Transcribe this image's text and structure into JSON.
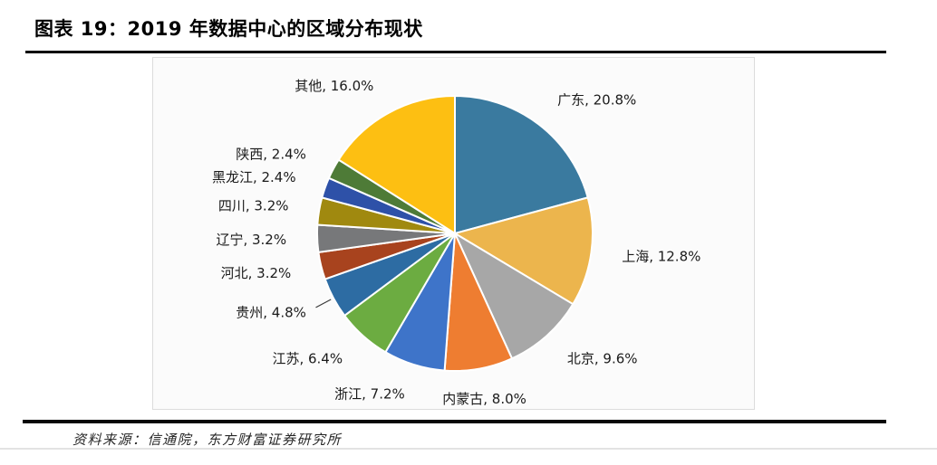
{
  "header": {
    "title": "图表 19：2019 年数据中心的区域分布现状"
  },
  "footer": {
    "source": "资料来源：信通院，东方财富证券研究所"
  },
  "colors": {
    "divider_rule": "#070707",
    "chart_box_border": "#DCDCDC",
    "chart_box_background": "#FBFBFB",
    "label_text": "#1B1B1B"
  },
  "chart_data": {
    "type": "pie",
    "title": "2019 年数据中心的区域分布现状",
    "unit": "%",
    "start_angle_deg": 0,
    "direction": "clockwise",
    "legend_position": "none",
    "grid": false,
    "slice_separator_color": "#FFFFFF",
    "slices": [
      {
        "name": "广东",
        "value": 20.8,
        "label": "广东, 20.8%",
        "color": "#3A7A9F"
      },
      {
        "name": "上海",
        "value": 12.8,
        "label": "上海, 12.8%",
        "color": "#ECB54D"
      },
      {
        "name": "北京",
        "value": 9.6,
        "label": "北京, 9.6%",
        "color": "#A7A7A7"
      },
      {
        "name": "内蒙古",
        "value": 8.0,
        "label": "内蒙古, 8.0%",
        "color": "#EE7D31"
      },
      {
        "name": "浙江",
        "value": 7.2,
        "label": "浙江, 7.2%",
        "color": "#3E74C9"
      },
      {
        "name": "江苏",
        "value": 6.4,
        "label": "江苏, 6.4%",
        "color": "#6CAC41"
      },
      {
        "name": "贵州",
        "value": 4.8,
        "label": "贵州, 4.8%",
        "color": "#2D6CA3",
        "leader_line": true
      },
      {
        "name": "河北",
        "value": 3.2,
        "label": "河北, 3.2%",
        "color": "#A8431E"
      },
      {
        "name": "辽宁",
        "value": 3.2,
        "label": "辽宁, 3.2%",
        "color": "#77787A"
      },
      {
        "name": "四川",
        "value": 3.2,
        "label": "四川, 3.2%",
        "color": "#A0890F"
      },
      {
        "name": "黑龙江",
        "value": 2.4,
        "label": "黑龙江, 2.4%",
        "color": "#2E51A8"
      },
      {
        "name": "陕西",
        "value": 2.4,
        "label": "陕西, 2.4%",
        "color": "#4E7B37"
      },
      {
        "name": "其他",
        "value": 16.0,
        "label": "其他, 16.0%",
        "color": "#FDBF12"
      }
    ]
  }
}
